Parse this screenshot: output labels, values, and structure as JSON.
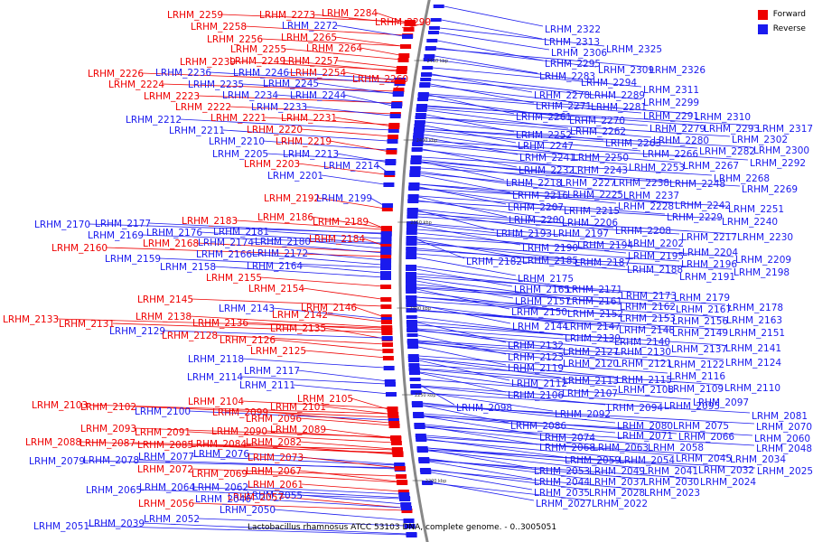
{
  "legend": {
    "forward_label": "Forward",
    "reverse_label": "Reverse",
    "forward_color": "#ee0000",
    "reverse_color": "#1a1aee"
  },
  "caption": "Lactobacillus rhamnosus ATCC 53103 DNA, complete genome. - 0..3005051",
  "backbone_color": "#888888",
  "ticks": [
    "2450 kbp",
    "2400 kbp",
    "2350 kbp",
    "2300 kbp",
    "2250 kbp",
    "2200 kbp"
  ],
  "left_labels": [
    {
      "text": "LRHM_2259",
      "strand": "forward"
    },
    {
      "text": "LRHM_2273",
      "strand": "forward"
    },
    {
      "text": "LRHM_2284",
      "strand": "forward"
    },
    {
      "text": "LRHM_2290",
      "strand": "forward"
    },
    {
      "text": "LRHM_2258",
      "strand": "forward"
    },
    {
      "text": "LRHM_2272",
      "strand": "reverse"
    },
    {
      "text": "LRHM_2256",
      "strand": "forward"
    },
    {
      "text": "LRHM_2265",
      "strand": "forward"
    },
    {
      "text": "LRHM_2255",
      "strand": "forward"
    },
    {
      "text": "LRHM_2264",
      "strand": "forward"
    },
    {
      "text": "LRHM_2239",
      "strand": "forward"
    },
    {
      "text": "LRHM_2249",
      "strand": "forward"
    },
    {
      "text": "LRHM_2257",
      "strand": "forward"
    },
    {
      "text": "LRHM_2226",
      "strand": "forward"
    },
    {
      "text": "LRHM_2236",
      "strand": "reverse"
    },
    {
      "text": "LRHM_2246",
      "strand": "reverse"
    },
    {
      "text": "LRHM_2254",
      "strand": "forward"
    },
    {
      "text": "LRHM_2260",
      "strand": "forward"
    },
    {
      "text": "LRHM_2224",
      "strand": "forward"
    },
    {
      "text": "LRHM_2235",
      "strand": "reverse"
    },
    {
      "text": "LRHM_2245",
      "strand": "reverse"
    },
    {
      "text": "LRHM_2223",
      "strand": "forward"
    },
    {
      "text": "LRHM_2234",
      "strand": "reverse"
    },
    {
      "text": "LRHM_2244",
      "strand": "reverse"
    },
    {
      "text": "LRHM_2222",
      "strand": "forward"
    },
    {
      "text": "LRHM_2233",
      "strand": "reverse"
    },
    {
      "text": "LRHM_2212",
      "strand": "reverse"
    },
    {
      "text": "LRHM_2221",
      "strand": "forward"
    },
    {
      "text": "LRHM_2231",
      "strand": "forward"
    },
    {
      "text": "LRHM_2211",
      "strand": "reverse"
    },
    {
      "text": "LRHM_2220",
      "strand": "forward"
    },
    {
      "text": "LRHM_2210",
      "strand": "reverse"
    },
    {
      "text": "LRHM_2219",
      "strand": "forward"
    },
    {
      "text": "LRHM_2205",
      "strand": "reverse"
    },
    {
      "text": "LRHM_2213",
      "strand": "reverse"
    },
    {
      "text": "LRHM_2203",
      "strand": "forward"
    },
    {
      "text": "LRHM_2214",
      "strand": "reverse"
    },
    {
      "text": "LRHM_2201",
      "strand": "reverse"
    },
    {
      "text": "LRHM_2192",
      "strand": "forward"
    },
    {
      "text": "LRHM_2199",
      "strand": "reverse"
    },
    {
      "text": "LRHM_2183",
      "strand": "forward"
    },
    {
      "text": "LRHM_2186",
      "strand": "forward"
    },
    {
      "text": "LRHM_2189",
      "strand": "forward"
    },
    {
      "text": "LRHM_2170",
      "strand": "reverse"
    },
    {
      "text": "LRHM_2177",
      "strand": "reverse"
    },
    {
      "text": "LRHM_2181",
      "strand": "reverse"
    },
    {
      "text": "LRHM_2169",
      "strand": "reverse"
    },
    {
      "text": "LRHM_2176",
      "strand": "reverse"
    },
    {
      "text": "LRHM_2184",
      "strand": "forward"
    },
    {
      "text": "LRHM_2168",
      "strand": "forward"
    },
    {
      "text": "LRHM_2174",
      "strand": "reverse"
    },
    {
      "text": "LRHM_2180",
      "strand": "reverse"
    },
    {
      "text": "LRHM_2160",
      "strand": "forward"
    },
    {
      "text": "LRHM_2166",
      "strand": "reverse"
    },
    {
      "text": "LRHM_2172",
      "strand": "reverse"
    },
    {
      "text": "LRHM_2159",
      "strand": "reverse"
    },
    {
      "text": "LRHM_2158",
      "strand": "reverse"
    },
    {
      "text": "LRHM_2164",
      "strand": "reverse"
    },
    {
      "text": "LRHM_2155",
      "strand": "forward"
    },
    {
      "text": "LRHM_2154",
      "strand": "forward"
    },
    {
      "text": "LRHM_2145",
      "strand": "forward"
    },
    {
      "text": "LRHM_2146",
      "strand": "forward"
    },
    {
      "text": "LRHM_2143",
      "strand": "reverse"
    },
    {
      "text": "LRHM_2142",
      "strand": "forward"
    },
    {
      "text": "LRHM_2133",
      "strand": "forward"
    },
    {
      "text": "LRHM_2138",
      "strand": "forward"
    },
    {
      "text": "LRHM_2136",
      "strand": "forward"
    },
    {
      "text": "LRHM_2131",
      "strand": "forward"
    },
    {
      "text": "LRHM_2135",
      "strand": "forward"
    },
    {
      "text": "LRHM_2129",
      "strand": "reverse"
    },
    {
      "text": "LRHM_2128",
      "strand": "forward"
    },
    {
      "text": "LRHM_2126",
      "strand": "forward"
    },
    {
      "text": "LRHM_2125",
      "strand": "forward"
    },
    {
      "text": "LRHM_2118",
      "strand": "reverse"
    },
    {
      "text": "LRHM_2117",
      "strand": "reverse"
    },
    {
      "text": "LRHM_2114",
      "strand": "reverse"
    },
    {
      "text": "LRHM_2111",
      "strand": "reverse"
    },
    {
      "text": "LRHM_2105",
      "strand": "forward"
    },
    {
      "text": "LRHM_2104",
      "strand": "forward"
    },
    {
      "text": "LRHM_2103",
      "strand": "forward"
    },
    {
      "text": "LRHM_2102",
      "strand": "forward"
    },
    {
      "text": "LRHM_2101",
      "strand": "forward"
    },
    {
      "text": "LRHM_2100",
      "strand": "reverse"
    },
    {
      "text": "LRHM_2099",
      "strand": "forward"
    },
    {
      "text": "LRHM_2096",
      "strand": "forward"
    },
    {
      "text": "LRHM_2093",
      "strand": "forward"
    },
    {
      "text": "LRHM_2091",
      "strand": "forward"
    },
    {
      "text": "LRHM_2090",
      "strand": "forward"
    },
    {
      "text": "LRHM_2089",
      "strand": "forward"
    },
    {
      "text": "LRHM_2088",
      "strand": "forward"
    },
    {
      "text": "LRHM_2087",
      "strand": "forward"
    },
    {
      "text": "LRHM_2085",
      "strand": "forward"
    },
    {
      "text": "LRHM_2084",
      "strand": "forward"
    },
    {
      "text": "LRHM_2082",
      "strand": "forward"
    },
    {
      "text": "LRHM_2077",
      "strand": "reverse"
    },
    {
      "text": "LRHM_2076",
      "strand": "reverse"
    },
    {
      "text": "LRHM_2079",
      "strand": "reverse"
    },
    {
      "text": "LRHM_2078",
      "strand": "reverse"
    },
    {
      "text": "LRHM_2073",
      "strand": "forward"
    },
    {
      "text": "LRHM_2072",
      "strand": "forward"
    },
    {
      "text": "LRHM_2069",
      "strand": "forward"
    },
    {
      "text": "LRHM_2067",
      "strand": "forward"
    },
    {
      "text": "LRHM_2061",
      "strand": "forward"
    },
    {
      "text": "LRHM_2065",
      "strand": "reverse"
    },
    {
      "text": "LRHM_2064",
      "strand": "reverse"
    },
    {
      "text": "LRHM_2062",
      "strand": "reverse"
    },
    {
      "text": "LRHM_2055",
      "strand": "reverse"
    },
    {
      "text": "LRHM_2057",
      "strand": "forward"
    },
    {
      "text": "LRHM_2056",
      "strand": "forward"
    },
    {
      "text": "LRHM_2046",
      "strand": "reverse"
    },
    {
      "text": "LRHM_2050",
      "strand": "reverse"
    },
    {
      "text": "LRHM_2052",
      "strand": "reverse"
    },
    {
      "text": "LRHM_2051",
      "strand": "reverse"
    },
    {
      "text": "LRHM_2039",
      "strand": "reverse"
    }
  ],
  "right_labels": [
    {
      "text": "LRHM_2322",
      "strand": "reverse"
    },
    {
      "text": "LRHM_2313",
      "strand": "reverse"
    },
    {
      "text": "LRHM_2325",
      "strand": "reverse"
    },
    {
      "text": "LRHM_2306",
      "strand": "reverse"
    },
    {
      "text": "LRHM_2295",
      "strand": "reverse"
    },
    {
      "text": "LRHM_2309",
      "strand": "reverse"
    },
    {
      "text": "LRHM_2326",
      "strand": "reverse"
    },
    {
      "text": "LRHM_2283",
      "strand": "reverse"
    },
    {
      "text": "LRHM_2294",
      "strand": "reverse"
    },
    {
      "text": "LRHM_2311",
      "strand": "reverse"
    },
    {
      "text": "LRHM_2278",
      "strand": "reverse"
    },
    {
      "text": "LRHM_2289",
      "strand": "reverse"
    },
    {
      "text": "LRHM_2299",
      "strand": "reverse"
    },
    {
      "text": "LRHM_2271",
      "strand": "reverse"
    },
    {
      "text": "LRHM_2281",
      "strand": "reverse"
    },
    {
      "text": "LRHM_2291",
      "strand": "reverse"
    },
    {
      "text": "LRHM_2310",
      "strand": "reverse"
    },
    {
      "text": "LRHM_2261",
      "strand": "reverse"
    },
    {
      "text": "LRHM_2270",
      "strand": "reverse"
    },
    {
      "text": "LRHM_2279",
      "strand": "reverse"
    },
    {
      "text": "LRHM_2293",
      "strand": "reverse"
    },
    {
      "text": "LRHM_2317",
      "strand": "reverse"
    },
    {
      "text": "LRHM_2262",
      "strand": "reverse"
    },
    {
      "text": "LRHM_2252",
      "strand": "reverse"
    },
    {
      "text": "LRHM_2280",
      "strand": "reverse"
    },
    {
      "text": "LRHM_2302",
      "strand": "reverse"
    },
    {
      "text": "LRHM_2263",
      "strand": "reverse"
    },
    {
      "text": "LRHM_2247",
      "strand": "reverse"
    },
    {
      "text": "LRHM_2266",
      "strand": "reverse"
    },
    {
      "text": "LRHM_2282",
      "strand": "reverse"
    },
    {
      "text": "LRHM_2300",
      "strand": "reverse"
    },
    {
      "text": "LRHM_2241",
      "strand": "reverse"
    },
    {
      "text": "LRHM_2250",
      "strand": "reverse"
    },
    {
      "text": "LRHM_2292",
      "strand": "reverse"
    },
    {
      "text": "LRHM_2232",
      "strand": "reverse"
    },
    {
      "text": "LRHM_2243",
      "strand": "reverse"
    },
    {
      "text": "LRHM_2253",
      "strand": "reverse"
    },
    {
      "text": "LRHM_2267",
      "strand": "reverse"
    },
    {
      "text": "LRHM_2218",
      "strand": "reverse"
    },
    {
      "text": "LRHM_2227",
      "strand": "reverse"
    },
    {
      "text": "LRHM_2238",
      "strand": "reverse"
    },
    {
      "text": "LRHM_2248",
      "strand": "reverse"
    },
    {
      "text": "LRHM_2268",
      "strand": "reverse"
    },
    {
      "text": "LRHM_2216",
      "strand": "reverse"
    },
    {
      "text": "LRHM_2225",
      "strand": "reverse"
    },
    {
      "text": "LRHM_2237",
      "strand": "reverse"
    },
    {
      "text": "LRHM_2269",
      "strand": "reverse"
    },
    {
      "text": "LRHM_2207",
      "strand": "reverse"
    },
    {
      "text": "LRHM_2215",
      "strand": "reverse"
    },
    {
      "text": "LRHM_2228",
      "strand": "reverse"
    },
    {
      "text": "LRHM_2242",
      "strand": "reverse"
    },
    {
      "text": "LRHM_2251",
      "strand": "reverse"
    },
    {
      "text": "LRHM_2200",
      "strand": "reverse"
    },
    {
      "text": "LRHM_2206",
      "strand": "reverse"
    },
    {
      "text": "LRHM_2229",
      "strand": "reverse"
    },
    {
      "text": "LRHM_2240",
      "strand": "reverse"
    },
    {
      "text": "LRHM_2193",
      "strand": "reverse"
    },
    {
      "text": "LRHM_2197",
      "strand": "reverse"
    },
    {
      "text": "LRHM_2208",
      "strand": "reverse"
    },
    {
      "text": "LRHM_2217",
      "strand": "reverse"
    },
    {
      "text": "LRHM_2230",
      "strand": "reverse"
    },
    {
      "text": "LRHM_2190",
      "strand": "reverse"
    },
    {
      "text": "LRHM_2194",
      "strand": "reverse"
    },
    {
      "text": "LRHM_2202",
      "strand": "reverse"
    },
    {
      "text": "LRHM_2204",
      "strand": "reverse"
    },
    {
      "text": "LRHM_2182",
      "strand": "reverse"
    },
    {
      "text": "LRHM_2185",
      "strand": "reverse"
    },
    {
      "text": "LRHM_2187",
      "strand": "reverse"
    },
    {
      "text": "LRHM_2195",
      "strand": "reverse"
    },
    {
      "text": "LRHM_2209",
      "strand": "reverse"
    },
    {
      "text": "LRHM_2188",
      "strand": "reverse"
    },
    {
      "text": "LRHM_2196",
      "strand": "reverse"
    },
    {
      "text": "LRHM_2191",
      "strand": "reverse"
    },
    {
      "text": "LRHM_2198",
      "strand": "reverse"
    },
    {
      "text": "LRHM_2175",
      "strand": "reverse"
    },
    {
      "text": "LRHM_2165",
      "strand": "reverse"
    },
    {
      "text": "LRHM_2171",
      "strand": "reverse"
    },
    {
      "text": "LRHM_2173",
      "strand": "reverse"
    },
    {
      "text": "LRHM_2179",
      "strand": "reverse"
    },
    {
      "text": "LRHM_2157",
      "strand": "reverse"
    },
    {
      "text": "LRHM_2161",
      "strand": "reverse"
    },
    {
      "text": "LRHM_2162",
      "strand": "reverse"
    },
    {
      "text": "LRHM_2167",
      "strand": "reverse"
    },
    {
      "text": "LRHM_2178",
      "strand": "reverse"
    },
    {
      "text": "LRHM_2150",
      "strand": "reverse"
    },
    {
      "text": "LRHM_2152",
      "strand": "reverse"
    },
    {
      "text": "LRHM_2153",
      "strand": "reverse"
    },
    {
      "text": "LRHM_2156",
      "strand": "reverse"
    },
    {
      "text": "LRHM_2163",
      "strand": "reverse"
    },
    {
      "text": "LRHM_2144",
      "strand": "reverse"
    },
    {
      "text": "LRHM_2147",
      "strand": "reverse"
    },
    {
      "text": "LRHM_2148",
      "strand": "reverse"
    },
    {
      "text": "LRHM_2149",
      "strand": "reverse"
    },
    {
      "text": "LRHM_2151",
      "strand": "reverse"
    },
    {
      "text": "LRHM_2139",
      "strand": "reverse"
    },
    {
      "text": "LRHM_2140",
      "strand": "reverse"
    },
    {
      "text": "LRHM_2132",
      "strand": "reverse"
    },
    {
      "text": "LRHM_2127",
      "strand": "reverse"
    },
    {
      "text": "LRHM_2130",
      "strand": "reverse"
    },
    {
      "text": "LRHM_2137",
      "strand": "reverse"
    },
    {
      "text": "LRHM_2141",
      "strand": "reverse"
    },
    {
      "text": "LRHM_2123",
      "strand": "reverse"
    },
    {
      "text": "LRHM_2120",
      "strand": "reverse"
    },
    {
      "text": "LRHM_2121",
      "strand": "reverse"
    },
    {
      "text": "LRHM_2122",
      "strand": "reverse"
    },
    {
      "text": "LRHM_2124",
      "strand": "reverse"
    },
    {
      "text": "LRHM_2119",
      "strand": "reverse"
    },
    {
      "text": "LRHM_2116",
      "strand": "reverse"
    },
    {
      "text": "LRHM_2112",
      "strand": "reverse"
    },
    {
      "text": "LRHM_2113",
      "strand": "reverse"
    },
    {
      "text": "LRHM_2115",
      "strand": "reverse"
    },
    {
      "text": "LRHM_2109",
      "strand": "reverse"
    },
    {
      "text": "LRHM_2110",
      "strand": "reverse"
    },
    {
      "text": "LRHM_2106",
      "strand": "reverse"
    },
    {
      "text": "LRHM_2107",
      "strand": "reverse"
    },
    {
      "text": "LRHM_2108",
      "strand": "reverse"
    },
    {
      "text": "LRHM_2097",
      "strand": "reverse"
    },
    {
      "text": "LRHM_2098",
      "strand": "reverse"
    },
    {
      "text": "LRHM_2094",
      "strand": "reverse"
    },
    {
      "text": "LRHM_2095",
      "strand": "reverse"
    },
    {
      "text": "LRHM_2081",
      "strand": "reverse"
    },
    {
      "text": "LRHM_2092",
      "strand": "reverse"
    },
    {
      "text": "LRHM_2070",
      "strand": "reverse"
    },
    {
      "text": "LRHM_2086",
      "strand": "reverse"
    },
    {
      "text": "LRHM_2080",
      "strand": "reverse"
    },
    {
      "text": "LRHM_2075",
      "strand": "reverse"
    },
    {
      "text": "LRHM_2074",
      "strand": "reverse"
    },
    {
      "text": "LRHM_2071",
      "strand": "reverse"
    },
    {
      "text": "LRHM_2066",
      "strand": "reverse"
    },
    {
      "text": "LRHM_2060",
      "strand": "reverse"
    },
    {
      "text": "LRHM_2068",
      "strand": "reverse"
    },
    {
      "text": "LRHM_2063",
      "strand": "reverse"
    },
    {
      "text": "LRHM_2058",
      "strand": "reverse"
    },
    {
      "text": "LRHM_2048",
      "strand": "reverse"
    },
    {
      "text": "LRHM_2059",
      "strand": "reverse"
    },
    {
      "text": "LRHM_2054",
      "strand": "reverse"
    },
    {
      "text": "LRHM_2045",
      "strand": "reverse"
    },
    {
      "text": "LRHM_2034",
      "strand": "reverse"
    },
    {
      "text": "LRHM_2053",
      "strand": "reverse"
    },
    {
      "text": "LRHM_2049",
      "strand": "reverse"
    },
    {
      "text": "LRHM_2041",
      "strand": "reverse"
    },
    {
      "text": "LRHM_2032",
      "strand": "reverse"
    },
    {
      "text": "LRHM_2025",
      "strand": "reverse"
    },
    {
      "text": "LRHM_2044",
      "strand": "reverse"
    },
    {
      "text": "LRHM_2037",
      "strand": "reverse"
    },
    {
      "text": "LRHM_2030",
      "strand": "reverse"
    },
    {
      "text": "LRHM_2024",
      "strand": "reverse"
    },
    {
      "text": "LRHM_2035",
      "strand": "reverse"
    },
    {
      "text": "LRHM_2028",
      "strand": "reverse"
    },
    {
      "text": "LRHM_2023",
      "strand": "reverse"
    },
    {
      "text": "LRHM_2027",
      "strand": "reverse"
    },
    {
      "text": "LRHM_2022",
      "strand": "reverse"
    }
  ]
}
